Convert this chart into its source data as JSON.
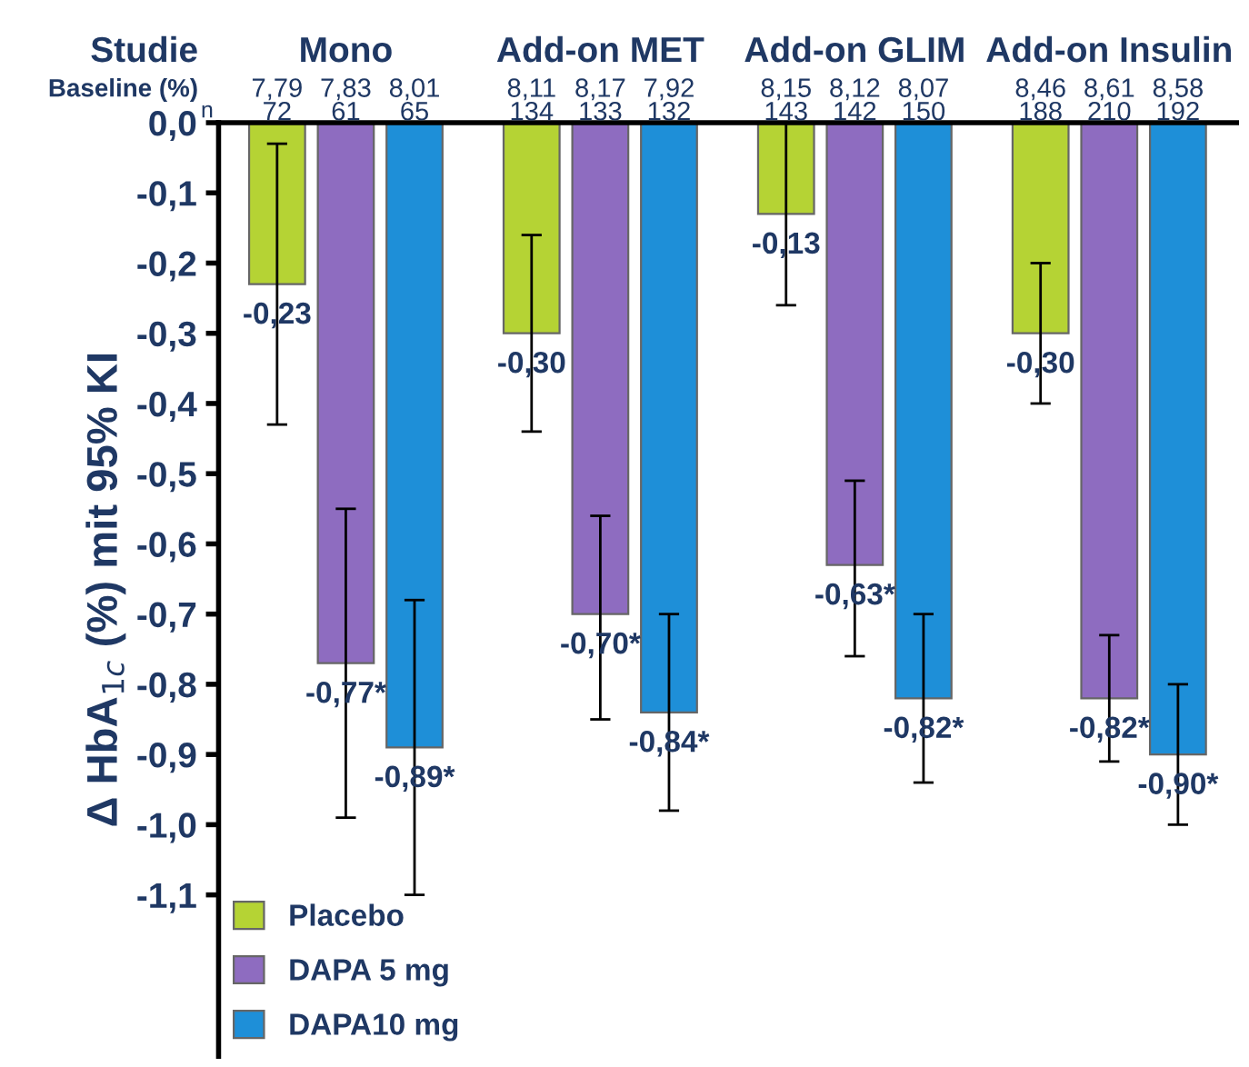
{
  "chart_data": {
    "type": "bar",
    "ylabel": "Δ HbA$_{1c}$ (%) mit 95% KI",
    "categories": [
      "Mono",
      "Add-on MET",
      "Add-on GLIM",
      "Add-on Insulin"
    ],
    "series": [
      {
        "name": "Placebo",
        "color": "#b5d334",
        "values": [
          -0.23,
          -0.3,
          -0.13,
          -0.3
        ],
        "value_labels": [
          "-0,23",
          "-0,30",
          "-0,13",
          "-0,30"
        ],
        "errors": [
          [
            -0.43,
            -0.03
          ],
          [
            -0.44,
            -0.16
          ],
          [
            -0.26,
            0.0
          ],
          [
            -0.4,
            -0.2
          ]
        ]
      },
      {
        "name": "DAPA 5 mg",
        "color": "#8e6cc0",
        "values": [
          -0.77,
          -0.7,
          -0.63,
          -0.82
        ],
        "value_labels": [
          "-0,77*",
          "-0,70*",
          "-0,63*",
          "-0,82*"
        ],
        "errors": [
          [
            -0.99,
            -0.55
          ],
          [
            -0.85,
            -0.56
          ],
          [
            -0.76,
            -0.51
          ],
          [
            -0.91,
            -0.73
          ]
        ]
      },
      {
        "name": "DAPA10 mg",
        "color": "#1e8fd8",
        "values": [
          -0.89,
          -0.84,
          -0.82,
          -0.9
        ],
        "value_labels": [
          "-0,89*",
          "-0,84*",
          "-0,82*",
          "-0,90*"
        ],
        "errors": [
          [
            -1.1,
            -0.68
          ],
          [
            -0.98,
            -0.7
          ],
          [
            -0.94,
            -0.7
          ],
          [
            -1.0,
            -0.8
          ]
        ]
      }
    ],
    "annotations": [
      "Studie",
      "Baseline (%)",
      "n",
      "7,79",
      "7,83",
      "8,01",
      "8,11",
      "8,17",
      "7,92",
      "8,15",
      "8,12",
      "8,07",
      "8,46",
      "8,61",
      "8,58",
      "72",
      "61",
      "65",
      "134",
      "133",
      "132",
      "143",
      "142",
      "150",
      "188",
      "210",
      "192"
    ],
    "ylim": [
      -1.33,
      0
    ],
    "yticks": [
      {
        "value": 0,
        "label": "0,0"
      },
      {
        "value": -0.1,
        "label": "-0,1"
      },
      {
        "value": -0.2,
        "label": "-0,2"
      },
      {
        "value": -0.3,
        "label": "-0,3"
      },
      {
        "value": -0.4,
        "label": "-0,4"
      },
      {
        "value": -0.5,
        "label": "-0,5"
      },
      {
        "value": -0.6,
        "label": "-0,6"
      },
      {
        "value": -0.7,
        "label": "-0,7"
      },
      {
        "value": -0.8,
        "label": "-0,8"
      },
      {
        "value": -0.9,
        "label": "-0,9"
      },
      {
        "value": -1.0,
        "label": "-1,0"
      },
      {
        "value": -1.1,
        "label": "-1,1"
      }
    ],
    "legend": "bottom left",
    "grid": false
  }
}
